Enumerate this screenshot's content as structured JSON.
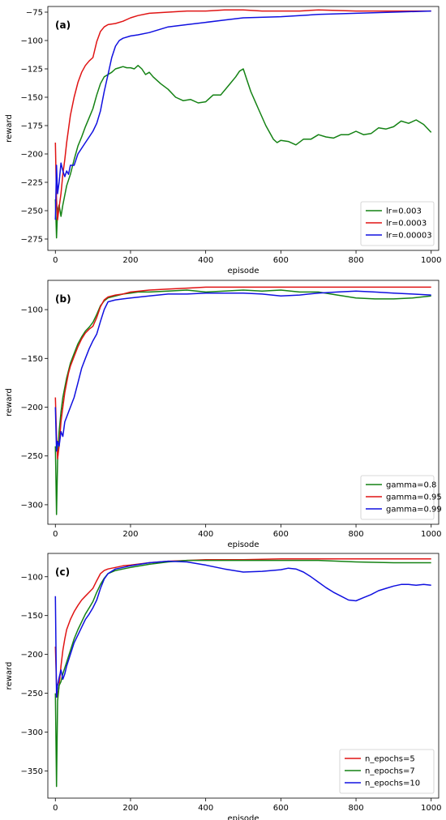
{
  "colors": {
    "green": "#148214",
    "red": "#e01414",
    "blue": "#1010e0"
  },
  "chart_data": [
    {
      "type": "line",
      "panel_label": "(a)",
      "xlabel": "episode",
      "ylabel": "reward",
      "xlim": [
        -20,
        1020
      ],
      "ylim": [
        -285,
        -70
      ],
      "xticks": [
        0,
        200,
        400,
        600,
        800,
        1000
      ],
      "yticks": [
        -275,
        -250,
        -225,
        -200,
        -175,
        -150,
        -125,
        -100,
        -75
      ],
      "legend_position": "lower-right",
      "series": [
        {
          "name": "lr=0.003",
          "color": "green",
          "x": [
            0,
            3,
            6,
            10,
            15,
            20,
            30,
            40,
            50,
            60,
            70,
            80,
            90,
            100,
            110,
            120,
            130,
            140,
            150,
            160,
            170,
            180,
            190,
            200,
            210,
            220,
            230,
            240,
            250,
            260,
            280,
            300,
            320,
            340,
            360,
            380,
            400,
            420,
            440,
            460,
            480,
            490,
            500,
            510,
            520,
            540,
            560,
            580,
            590,
            600,
            620,
            640,
            660,
            680,
            700,
            720,
            740,
            760,
            780,
            800,
            820,
            840,
            860,
            880,
            900,
            920,
            940,
            960,
            980,
            1000
          ],
          "y": [
            -240,
            -274,
            -250,
            -245,
            -255,
            -245,
            -228,
            -218,
            -205,
            -193,
            -185,
            -176,
            -168,
            -160,
            -148,
            -138,
            -132,
            -130,
            -128,
            -125,
            -124,
            -123,
            -124,
            -124,
            -125,
            -122,
            -125,
            -130,
            -128,
            -132,
            -138,
            -143,
            -150,
            -153,
            -152,
            -155,
            -154,
            -148,
            -148,
            -140,
            -132,
            -127,
            -125,
            -135,
            -145,
            -160,
            -175,
            -187,
            -190,
            -188,
            -189,
            -192,
            -187,
            -187,
            -183,
            -185,
            -186,
            -183,
            -183,
            -180,
            -183,
            -182,
            -177,
            -178,
            -176,
            -171,
            -173,
            -170,
            -174,
            -181
          ]
        },
        {
          "name": "lr=0.0003",
          "color": "red",
          "x": [
            0,
            3,
            6,
            10,
            15,
            20,
            25,
            30,
            35,
            40,
            50,
            60,
            70,
            80,
            90,
            100,
            110,
            120,
            130,
            140,
            160,
            180,
            200,
            220,
            250,
            300,
            350,
            400,
            450,
            500,
            550,
            600,
            650,
            700,
            800,
            900,
            1000
          ],
          "y": [
            -190,
            -240,
            -258,
            -247,
            -235,
            -218,
            -205,
            -190,
            -178,
            -166,
            -150,
            -137,
            -128,
            -122,
            -118,
            -115,
            -101,
            -92,
            -88,
            -86,
            -85,
            -83,
            -80,
            -78,
            -76,
            -75,
            -74,
            -74,
            -73,
            -73,
            -74,
            -74,
            -74,
            -73,
            -74,
            -74,
            -74
          ]
        },
        {
          "name": "lr=0.00003",
          "color": "blue",
          "x": [
            0,
            3,
            6,
            10,
            15,
            20,
            25,
            30,
            35,
            40,
            50,
            60,
            70,
            80,
            90,
            100,
            110,
            120,
            130,
            140,
            150,
            160,
            170,
            180,
            200,
            220,
            250,
            300,
            350,
            400,
            450,
            500,
            600,
            700,
            800,
            900,
            1000
          ],
          "y": [
            -258,
            -210,
            -235,
            -225,
            -208,
            -215,
            -220,
            -215,
            -218,
            -210,
            -210,
            -200,
            -195,
            -190,
            -185,
            -180,
            -173,
            -162,
            -145,
            -130,
            -115,
            -105,
            -100,
            -98,
            -96,
            -95,
            -93,
            -88,
            -86,
            -84,
            -82,
            -80,
            -79,
            -77,
            -76,
            -75,
            -74
          ]
        }
      ]
    },
    {
      "type": "line",
      "panel_label": "(b)",
      "xlabel": "episode",
      "ylabel": "reward",
      "xlim": [
        -20,
        1020
      ],
      "ylim": [
        -320,
        -70
      ],
      "xticks": [
        0,
        200,
        400,
        600,
        800,
        1000
      ],
      "yticks": [
        -300,
        -250,
        -200,
        -150,
        -100
      ],
      "legend_position": "lower-right",
      "series": [
        {
          "name": "gamma=0.8",
          "color": "green",
          "x": [
            0,
            3,
            6,
            10,
            15,
            20,
            30,
            40,
            50,
            60,
            70,
            80,
            90,
            100,
            110,
            120,
            130,
            140,
            160,
            180,
            200,
            220,
            250,
            300,
            350,
            400,
            450,
            500,
            550,
            600,
            650,
            700,
            750,
            800,
            850,
            900,
            950,
            1000
          ],
          "y": [
            -240,
            -310,
            -255,
            -225,
            -205,
            -190,
            -170,
            -155,
            -145,
            -135,
            -128,
            -122,
            -118,
            -113,
            -105,
            -96,
            -91,
            -88,
            -86,
            -84,
            -83,
            -82,
            -82,
            -81,
            -80,
            -82,
            -81,
            -80,
            -81,
            -80,
            -82,
            -82,
            -85,
            -88,
            -89,
            -89,
            -88,
            -86
          ]
        },
        {
          "name": "gamma=0.95",
          "color": "red",
          "x": [
            0,
            3,
            6,
            10,
            15,
            20,
            25,
            30,
            35,
            40,
            50,
            60,
            70,
            80,
            90,
            100,
            110,
            120,
            130,
            140,
            160,
            180,
            200,
            250,
            300,
            350,
            400,
            450,
            500,
            600,
            700,
            800,
            900,
            1000
          ],
          "y": [
            -190,
            -230,
            -253,
            -240,
            -215,
            -200,
            -185,
            -175,
            -165,
            -158,
            -148,
            -138,
            -130,
            -124,
            -120,
            -117,
            -108,
            -97,
            -90,
            -87,
            -85,
            -84,
            -82,
            -80,
            -79,
            -78,
            -77,
            -77,
            -77,
            -77,
            -77,
            -77,
            -77,
            -77
          ]
        },
        {
          "name": "gamma=0.99",
          "color": "blue",
          "x": [
            0,
            3,
            6,
            10,
            15,
            20,
            25,
            30,
            40,
            50,
            60,
            70,
            80,
            90,
            100,
            110,
            120,
            130,
            140,
            160,
            180,
            200,
            250,
            300,
            350,
            400,
            450,
            500,
            550,
            600,
            650,
            700,
            750,
            800,
            850,
            900,
            950,
            1000
          ],
          "y": [
            -200,
            -245,
            -235,
            -240,
            -225,
            -230,
            -215,
            -210,
            -200,
            -190,
            -175,
            -160,
            -150,
            -140,
            -132,
            -125,
            -112,
            -100,
            -92,
            -90,
            -89,
            -88,
            -86,
            -84,
            -84,
            -83,
            -83,
            -83,
            -84,
            -86,
            -85,
            -83,
            -82,
            -81,
            -82,
            -83,
            -84,
            -85
          ]
        }
      ]
    },
    {
      "type": "line",
      "panel_label": "(c)",
      "xlabel": "episode",
      "ylabel": "reward",
      "xlim": [
        -20,
        1020
      ],
      "ylim": [
        -385,
        -70
      ],
      "xticks": [
        0,
        200,
        400,
        600,
        800,
        1000
      ],
      "yticks": [
        -350,
        -300,
        -250,
        -200,
        -150,
        -100
      ],
      "legend_position": "lower-right",
      "series": [
        {
          "name": "n_epochs=5",
          "color": "red",
          "x": [
            0,
            3,
            6,
            10,
            15,
            20,
            25,
            30,
            40,
            50,
            60,
            70,
            80,
            90,
            100,
            110,
            120,
            130,
            140,
            160,
            180,
            200,
            250,
            300,
            400,
            500,
            600,
            700,
            800,
            900,
            1000
          ],
          "y": [
            -190,
            -240,
            -255,
            -240,
            -215,
            -195,
            -180,
            -168,
            -155,
            -145,
            -137,
            -130,
            -125,
            -120,
            -115,
            -105,
            -96,
            -92,
            -90,
            -88,
            -86,
            -85,
            -82,
            -80,
            -78,
            -78,
            -77,
            -77,
            -77,
            -77,
            -77
          ]
        },
        {
          "name": "n_epochs=7",
          "color": "green",
          "x": [
            0,
            3,
            6,
            10,
            15,
            20,
            30,
            40,
            50,
            60,
            70,
            80,
            90,
            100,
            110,
            120,
            130,
            140,
            160,
            180,
            200,
            250,
            300,
            350,
            400,
            500,
            600,
            700,
            800,
            900,
            1000
          ],
          "y": [
            -250,
            -370,
            -260,
            -240,
            -235,
            -225,
            -210,
            -195,
            -180,
            -168,
            -158,
            -148,
            -140,
            -132,
            -120,
            -110,
            -102,
            -96,
            -92,
            -90,
            -88,
            -84,
            -81,
            -79,
            -79,
            -79,
            -79,
            -79,
            -81,
            -82,
            -82
          ]
        },
        {
          "name": "n_epochs=10",
          "color": "blue",
          "x": [
            0,
            3,
            6,
            10,
            15,
            20,
            25,
            30,
            40,
            50,
            60,
            70,
            80,
            90,
            100,
            110,
            120,
            130,
            140,
            160,
            180,
            200,
            250,
            300,
            350,
            400,
            450,
            500,
            550,
            600,
            620,
            640,
            660,
            680,
            700,
            720,
            740,
            760,
            780,
            800,
            820,
            840,
            860,
            880,
            900,
            920,
            940,
            960,
            980,
            1000
          ],
          "y": [
            -125,
            -255,
            -240,
            -230,
            -220,
            -232,
            -225,
            -215,
            -200,
            -185,
            -175,
            -165,
            -155,
            -148,
            -140,
            -130,
            -115,
            -103,
            -96,
            -90,
            -88,
            -86,
            -82,
            -80,
            -81,
            -85,
            -90,
            -94,
            -93,
            -91,
            -89,
            -90,
            -94,
            -100,
            -107,
            -114,
            -120,
            -125,
            -130,
            -131,
            -127,
            -123,
            -118,
            -115,
            -112,
            -110,
            -110,
            -111,
            -110,
            -111
          ]
        }
      ]
    }
  ]
}
